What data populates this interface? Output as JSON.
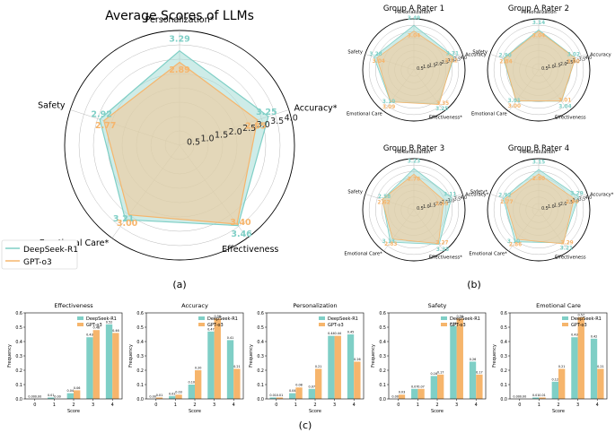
{
  "colors": {
    "series1": "#7fcfc6",
    "series2": "#f6b56c",
    "series1_fill": "#a6dcd6",
    "series2_fill": "#f2c99a",
    "overlap": "#d7c7a7",
    "grid": "#bbbbbb",
    "axis": "#000000"
  },
  "panel_labels": {
    "a": "(a)",
    "b": "(b)",
    "c": "(c)"
  },
  "chart_data": [
    {
      "type": "radar",
      "panel": "a",
      "title": "Average Scores of LLMs",
      "axes": [
        "Personalization*",
        "Accuracy*",
        "Effectiveness",
        "Emotional Care*",
        "Safety"
      ],
      "r_ticks": [
        0.5,
        1.0,
        1.5,
        2.0,
        2.5,
        3.0,
        3.5,
        4.0
      ],
      "r_tick_labels": [
        "0.5",
        "1.0",
        "1.5",
        "2.0",
        "2.5",
        "3.0",
        "3.5",
        "4.0"
      ],
      "rlim": [
        0,
        4.0
      ],
      "legend": [
        "DeepSeek-R1",
        "GPT-o3"
      ],
      "series": [
        {
          "name": "DeepSeek-R1",
          "values": [
            3.29,
            3.25,
            3.46,
            3.21,
            2.92
          ],
          "labels": [
            "3.29",
            "3.25",
            "3.46",
            "3.21",
            "2.92"
          ]
        },
        {
          "name": "GPT-o3",
          "values": [
            2.89,
            2.85,
            3.4,
            3.0,
            2.77
          ],
          "labels": [
            "2.89",
            "2.85",
            "3.40",
            "3.00",
            "2.77"
          ]
        }
      ]
    },
    {
      "type": "radar",
      "panel": "b",
      "title": "Group A Rater 1",
      "axes": [
        "Personalization*",
        "Accuracy",
        "Effectiveness*",
        "Emotional Care",
        "Safety"
      ],
      "r_tick_labels": [
        "0.5",
        "1.0",
        "1.5",
        "2.0",
        "2.5",
        "3.0",
        "3.5",
        "4.0"
      ],
      "rlim": [
        0,
        4.0
      ],
      "series": [
        {
          "name": "DeepSeek-R1",
          "values": [
            3.49,
            3.31,
            3.25,
            3.1,
            3.28
          ],
          "labels": [
            "3.49",
            "3.31",
            "3.25",
            "3.10",
            "3.28"
          ]
        },
        {
          "name": "GPT-o3",
          "values": [
            3.04,
            3.22,
            3.35,
            3.09,
            3.04
          ],
          "labels": [
            "3.04",
            "3.22",
            "3.35",
            "3.09",
            "3.04"
          ]
        }
      ]
    },
    {
      "type": "radar",
      "panel": "b",
      "title": "Group A Rater 2",
      "axes": [
        "Personalization",
        "Accuracy",
        "Effectiveness",
        "Emotional Care",
        "Safety"
      ],
      "r_tick_labels": [
        "0.5",
        "1.0",
        "1.5",
        "2.0",
        "2.5",
        "3.0",
        "3.5",
        "4.0"
      ],
      "rlim": [
        0,
        4.0
      ],
      "series": [
        {
          "name": "DeepSeek-R1",
          "values": [
            3.14,
            3.02,
            3.04,
            3.01,
            2.9
          ],
          "labels": [
            "3.14",
            "3.02",
            "3.04",
            "3.01",
            "2.90"
          ]
        },
        {
          "name": "GPT-o3",
          "values": [
            3.04,
            3.0,
            3.01,
            3.0,
            2.84
          ],
          "labels": [
            "3.04",
            "3.00",
            "3.01",
            "3.00",
            "2.84"
          ]
        }
      ]
    },
    {
      "type": "radar",
      "panel": "b",
      "title": "Group B Rater 3",
      "axes": [
        "Personalization*",
        "Accuracy*",
        "Effectiveness*",
        "Emotional Care*",
        "Safety"
      ],
      "r_tick_labels": [
        "0.5",
        "1.0",
        "1.5",
        "2.0",
        "2.5",
        "3.0",
        "3.5",
        "4.0"
      ],
      "rlim": [
        0,
        4.0
      ],
      "series": [
        {
          "name": "DeepSeek-R1",
          "values": [
            3.23,
            3.11,
            3.35,
            3.13,
            2.58
          ],
          "labels": [
            "3.23",
            "3.11",
            "3.35",
            "3.13",
            "2.58"
          ]
        },
        {
          "name": "GPT-o3",
          "values": [
            2.78,
            2.45,
            3.27,
            2.83,
            2.62
          ],
          "labels": [
            "2.78",
            "2.45",
            "3.27",
            "2.83",
            "2.62"
          ]
        }
      ]
    },
    {
      "type": "radar",
      "panel": "b",
      "title": "Group B Rater 4",
      "axes": [
        "Personalization*",
        "Accuracy*",
        "Effectiveness",
        "Emotional Care*",
        "Safety*"
      ],
      "r_tick_labels": [
        "0.5",
        "1.0",
        "1.5",
        "2.0",
        "2.5",
        "3.0",
        "3.5",
        "4.0"
      ],
      "rlim": [
        0,
        4.0
      ],
      "series": [
        {
          "name": "DeepSeek-R1",
          "values": [
            3.15,
            3.29,
            3.21,
            3.1,
            2.92
          ],
          "labels": [
            "3.15",
            "3.29",
            "3.21",
            "3.10",
            "2.92"
          ]
        },
        {
          "name": "GPT-o3",
          "values": [
            2.8,
            2.9,
            3.29,
            2.86,
            2.77
          ],
          "labels": [
            "2.80",
            "2.90",
            "3.29",
            "2.86",
            "2.77"
          ]
        }
      ]
    },
    {
      "type": "bar",
      "panel": "c",
      "title": "Effectiveness",
      "categories": [
        "0",
        "1",
        "2",
        "3",
        "4"
      ],
      "xlabel": "Score",
      "ylabel": "Frequency",
      "ylim": [
        0,
        0.6
      ],
      "yticks": [
        "0.0",
        "0.1",
        "0.2",
        "0.3",
        "0.4",
        "0.5",
        "0.6"
      ],
      "legend": [
        "DeepSeek-R1",
        "GPT-o3"
      ],
      "series": [
        {
          "name": "DeepSeek-R1",
          "values": [
            0.0,
            0.01,
            0.04,
            0.43,
            0.52
          ],
          "labels": [
            "0.00",
            "0.01",
            "0.04",
            "0.43",
            "0.52"
          ]
        },
        {
          "name": "GPT-o3",
          "values": [
            0.0,
            0.0,
            0.06,
            0.48,
            0.46
          ],
          "labels": [
            "0.00",
            "0.00",
            "0.06",
            "0.48",
            "0.46"
          ]
        }
      ]
    },
    {
      "type": "bar",
      "panel": "c",
      "title": "Accuracy",
      "categories": [
        "0",
        "1",
        "2",
        "3",
        "4"
      ],
      "xlabel": "Score",
      "ylabel": "Frequency",
      "ylim": [
        0,
        0.6
      ],
      "yticks": [
        "0.0",
        "0.1",
        "0.2",
        "0.3",
        "0.4",
        "0.5",
        "0.6"
      ],
      "legend": [
        "DeepSeek-R1",
        "GPT-o3"
      ],
      "series": [
        {
          "name": "DeepSeek-R1",
          "values": [
            0.0,
            0.02,
            0.1,
            0.47,
            0.41
          ],
          "labels": [
            "0.00",
            "0.02",
            "0.10",
            "0.47",
            "0.41"
          ]
        },
        {
          "name": "GPT-o3",
          "values": [
            0.01,
            0.03,
            0.2,
            0.56,
            0.21
          ],
          "labels": [
            "0.01",
            "0.03",
            "0.20",
            "0.56",
            "0.21"
          ]
        }
      ]
    },
    {
      "type": "bar",
      "panel": "c",
      "title": "Personalization",
      "categories": [
        "0",
        "1",
        "2",
        "3",
        "4"
      ],
      "xlabel": "Score",
      "ylabel": "Frequency",
      "ylim": [
        0,
        0.6
      ],
      "yticks": [
        "0.0",
        "0.1",
        "0.2",
        "0.3",
        "0.4",
        "0.5",
        "0.6"
      ],
      "legend": [
        "DeepSeek-R1",
        "GPT-o3"
      ],
      "series": [
        {
          "name": "DeepSeek-R1",
          "values": [
            0.01,
            0.04,
            0.07,
            0.44,
            0.45
          ],
          "labels": [
            "0.01",
            "0.04",
            "0.07",
            "0.44",
            "0.45"
          ]
        },
        {
          "name": "GPT-o3",
          "values": [
            0.01,
            0.08,
            0.21,
            0.44,
            0.26
          ],
          "labels": [
            "0.01",
            "0.08",
            "0.21",
            "0.44",
            "0.26"
          ]
        }
      ]
    },
    {
      "type": "bar",
      "panel": "c",
      "title": "Safety",
      "categories": [
        "0",
        "1",
        "2",
        "3",
        "4"
      ],
      "xlabel": "Score",
      "ylabel": "Frequency",
      "ylim": [
        0,
        0.6
      ],
      "yticks": [
        "0.0",
        "0.1",
        "0.2",
        "0.3",
        "0.4",
        "0.5",
        "0.6"
      ],
      "legend": [
        "DeepSeek-R1",
        "GPT-o3"
      ],
      "series": [
        {
          "name": "DeepSeek-R1",
          "values": [
            0.0,
            0.07,
            0.16,
            0.51,
            0.26
          ],
          "labels": [
            "0.00",
            "0.07",
            "0.16",
            "0.51",
            "0.26"
          ]
        },
        {
          "name": "GPT-o3",
          "values": [
            0.03,
            0.07,
            0.17,
            0.56,
            0.17
          ],
          "labels": [
            "0.03",
            "0.07",
            "0.17",
            "0.56",
            "0.17"
          ]
        }
      ]
    },
    {
      "type": "bar",
      "panel": "c",
      "title": "Emotional Care",
      "categories": [
        "0",
        "1",
        "2",
        "3",
        "4"
      ],
      "xlabel": "Score",
      "ylabel": "Frequency",
      "ylim": [
        0,
        0.6
      ],
      "yticks": [
        "0.0",
        "0.1",
        "0.2",
        "0.3",
        "0.4",
        "0.5",
        "0.6"
      ],
      "legend": [
        "DeepSeek-R1",
        "GPT-o3"
      ],
      "series": [
        {
          "name": "DeepSeek-R1",
          "values": [
            0.0,
            0.01,
            0.12,
            0.43,
            0.42
          ],
          "labels": [
            "0.00",
            "0.01",
            "0.12",
            "0.43",
            "0.42"
          ]
        },
        {
          "name": "GPT-o3",
          "values": [
            0.0,
            0.01,
            0.21,
            0.57,
            0.21
          ],
          "labels": [
            "0.00",
            "0.01",
            "0.21",
            "0.57",
            "0.21"
          ]
        }
      ]
    }
  ]
}
